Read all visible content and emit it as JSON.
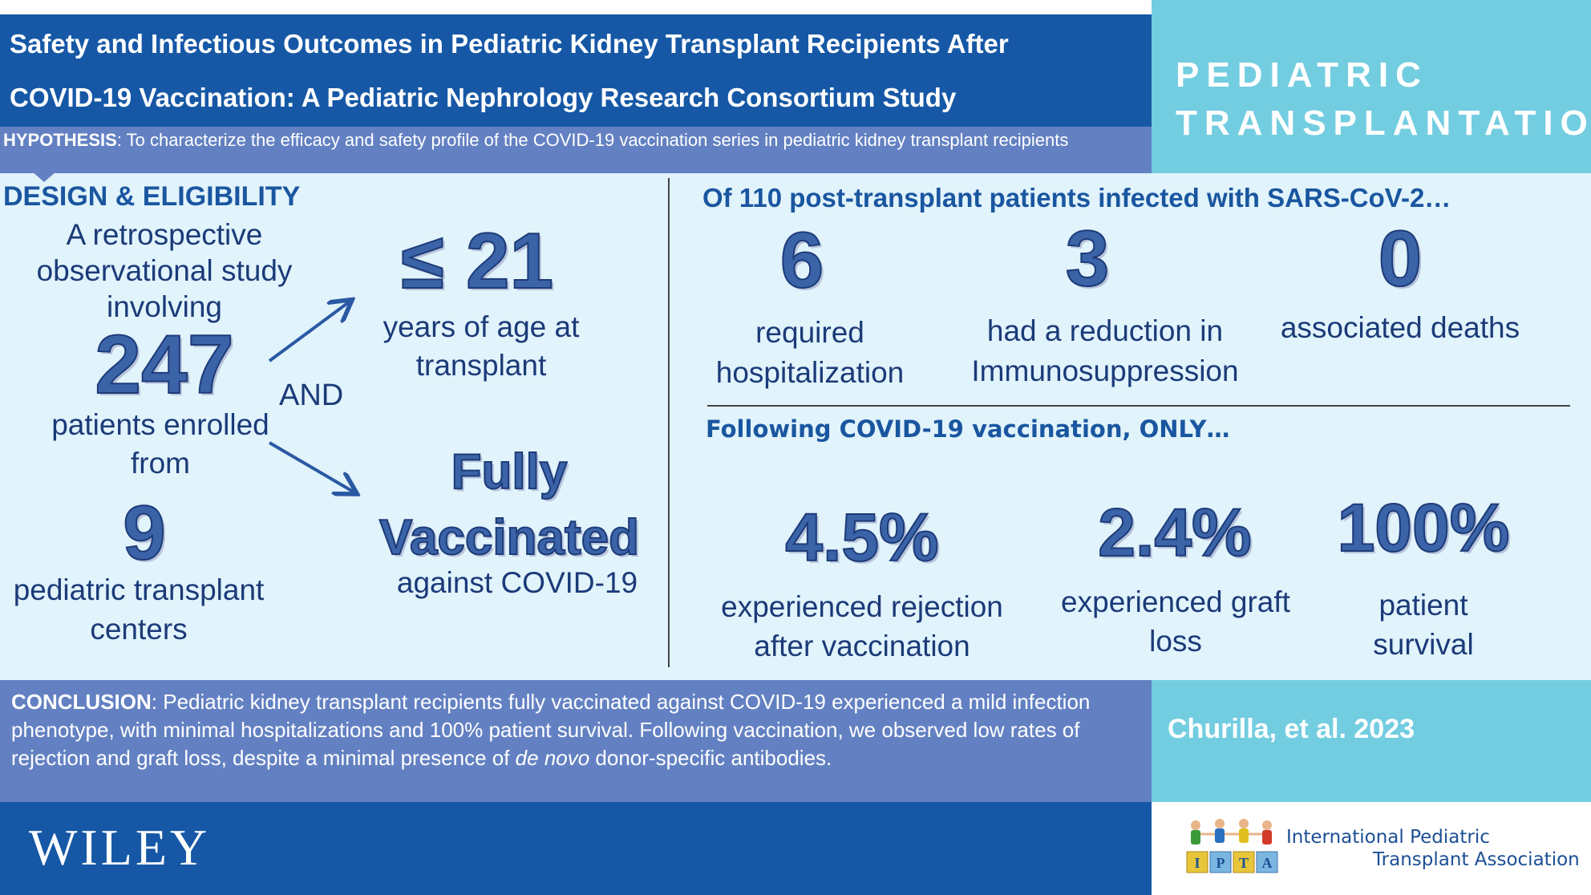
{
  "header": {
    "title_line1": "Safety and Infectious Outcomes in Pediatric Kidney Transplant Recipients After",
    "title_line2": "COVID-19 Vaccination: A Pediatric Nephrology Research Consortium Study",
    "journal_line1": "PEDIATRIC",
    "journal_line2": "TRANSPLANTATION"
  },
  "hypothesis": {
    "label": "HYPOTHESIS",
    "text": ": To characterize the efficacy and safety profile of the COVID-19 vaccination series in pediatric kidney transplant recipients"
  },
  "design": {
    "heading": "DESIGN & ELIGIBILITY",
    "intro": "A retrospective observational study involving",
    "patients_count": "247",
    "patients_text": "patients enrolled from",
    "centers_count": "9",
    "centers_text": "pediatric transplant centers",
    "and_label": "AND",
    "age_value": "≤ 21",
    "age_text": "years of age at transplant",
    "vacc_value": "Fully Vaccinated",
    "vacc_text": "against COVID-19"
  },
  "infected": {
    "heading": "Of 110 post-transplant patients infected with SARS-CoV-2…",
    "stats": [
      {
        "value": "6",
        "label": "required hospitalization"
      },
      {
        "value": "3",
        "label": "had a reduction in Immunosuppression"
      },
      {
        "value": "0",
        "label": "associated deaths"
      }
    ]
  },
  "vaccination": {
    "heading": "Following COVID-19 vaccination, ONLY…",
    "stats": [
      {
        "value": "4.5%",
        "label": "experienced rejection after vaccination"
      },
      {
        "value": "2.4%",
        "label": "experienced graft loss"
      },
      {
        "value": "100%",
        "label": "patient survival"
      }
    ]
  },
  "conclusion": {
    "label": "CONCLUSION",
    "text_before": ": Pediatric kidney transplant recipients fully vaccinated against COVID-19 experienced a mild infection phenotype, with minimal hospitalizations and 100% patient survival. Following vaccination, we observed low rates of rejection and graft loss, despite a minimal presence of ",
    "text_italic": "de novo",
    "text_after": " donor-specific antibodies."
  },
  "citation": "Churilla, et al. 2023",
  "footer": {
    "publisher": "WILEY",
    "ipta_letters": [
      "I",
      "P",
      "T",
      "A"
    ],
    "ipta_line1": "International Pediatric",
    "ipta_line2": "Transplant Association"
  },
  "colors": {
    "dark_blue": "#1658a6",
    "mid_blue": "#6381c2",
    "light_cyan": "#73cde0",
    "pale_bg": "#e1f3fb"
  }
}
